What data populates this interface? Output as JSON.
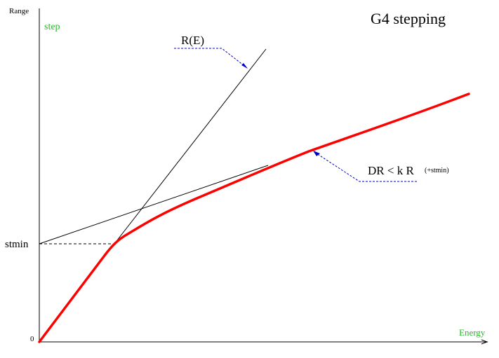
{
  "title": "G4 stepping",
  "y_axis_label": "Range",
  "x_axis_label": "Energy",
  "step_label": "step",
  "stmin_label": "stmin",
  "zero_label": "0",
  "re_label": "R(E)",
  "dr_label": "DR < k R",
  "dr_note": "(+stmin)",
  "colors": {
    "step_curve": "#ff0000",
    "annotation": "#0000cc",
    "axis_text_green": "#22bb22",
    "line": "#000000"
  }
}
